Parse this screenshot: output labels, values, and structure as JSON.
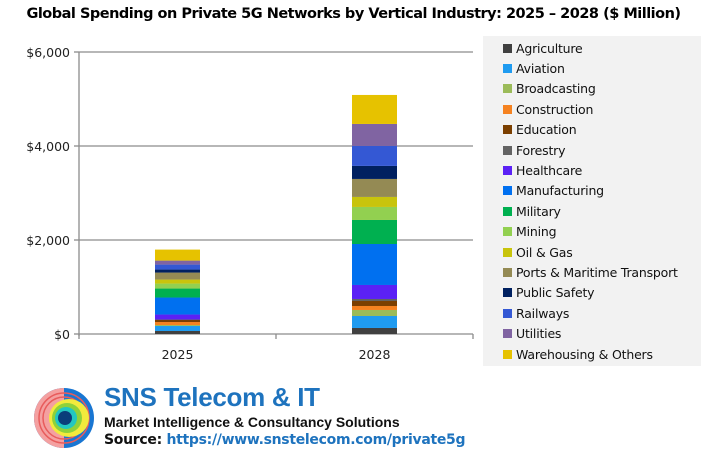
{
  "chart_data": {
    "type": "bar",
    "stacked": true,
    "title": "Global Spending on Private 5G Networks by Vertical Industry: 2025 – 2028 ($ Million)",
    "xlabel": "",
    "ylabel": "",
    "categories": [
      "2025",
      "2028"
    ],
    "ylim": [
      0,
      6000
    ],
    "yticks": [
      0,
      2000,
      4000,
      6000
    ],
    "ytick_labels": [
      "$0",
      "$2,000",
      "$4,000",
      "$6,000"
    ],
    "grid": true,
    "legend_position": "right",
    "series": [
      {
        "name": "Agriculture",
        "color": "#404040",
        "values": [
          64,
          128
        ]
      },
      {
        "name": "Aviation",
        "color": "#1f9bf0",
        "values": [
          106,
          255
        ]
      },
      {
        "name": "Broadcasting",
        "color": "#9bbb59",
        "values": [
          21,
          128
        ]
      },
      {
        "name": "Construction",
        "color": "#f58220",
        "values": [
          64,
          85
        ]
      },
      {
        "name": "Education",
        "color": "#7b3f00",
        "values": [
          43,
          106
        ]
      },
      {
        "name": "Forestry",
        "color": "#636363",
        "values": [
          10,
          43
        ]
      },
      {
        "name": "Healthcare",
        "color": "#5b21f5",
        "values": [
          106,
          298
        ]
      },
      {
        "name": "Manufacturing",
        "color": "#0070f0",
        "values": [
          362,
          872
        ]
      },
      {
        "name": "Military",
        "color": "#00b050",
        "values": [
          191,
          511
        ]
      },
      {
        "name": "Mining",
        "color": "#92d050",
        "values": [
          106,
          277
        ]
      },
      {
        "name": "Oil & Gas",
        "color": "#c8c40c",
        "values": [
          85,
          213
        ]
      },
      {
        "name": "Ports & Maritime Transport",
        "color": "#948a54",
        "values": [
          149,
          383
        ]
      },
      {
        "name": "Public Safety",
        "color": "#002060",
        "values": [
          64,
          277
        ]
      },
      {
        "name": "Railways",
        "color": "#3458d4",
        "values": [
          106,
          425
        ]
      },
      {
        "name": "Utilities",
        "color": "#8064a2",
        "values": [
          85,
          468
        ]
      },
      {
        "name": "Warehousing & Others",
        "color": "#e6c200",
        "values": [
          234,
          617
        ]
      }
    ]
  },
  "footer": {
    "brand": "SNS Telecom & IT",
    "tagline": "Market Intelligence & Consultancy Solutions",
    "source_label": "Source: ",
    "source_url": "https://www.snstelecom.com/private5g"
  }
}
